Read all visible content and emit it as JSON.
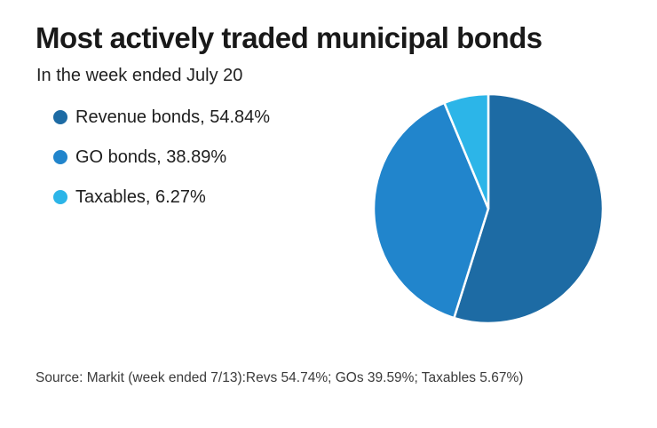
{
  "header": {
    "title": "Most actively traded municipal bonds",
    "subtitle": "In the week ended July 20"
  },
  "legend": [
    {
      "label": "Revenue bonds, 54.84%",
      "color": "#1d6ba4"
    },
    {
      "label": "GO bonds, 38.89%",
      "color": "#2185cc"
    },
    {
      "label": "Taxables, 6.27%",
      "color": "#2cb5e8"
    }
  ],
  "chart_data": {
    "type": "pie",
    "title": "Most actively traded municipal bonds",
    "subtitle": "In the week ended July 20",
    "categories": [
      "Revenue bonds",
      "GO bonds",
      "Taxables"
    ],
    "values": [
      54.84,
      38.89,
      6.27
    ],
    "colors": [
      "#1d6ba4",
      "#2185cc",
      "#2cb5e8"
    ],
    "start_angle_deg": 0,
    "direction": "clockwise",
    "slice_border_color": "#ffffff",
    "legend_position": "left"
  },
  "source": {
    "text": "Source: Markit (week ended 7/13):Revs 54.74%; GOs 39.59%; Taxables 5.67%)"
  }
}
